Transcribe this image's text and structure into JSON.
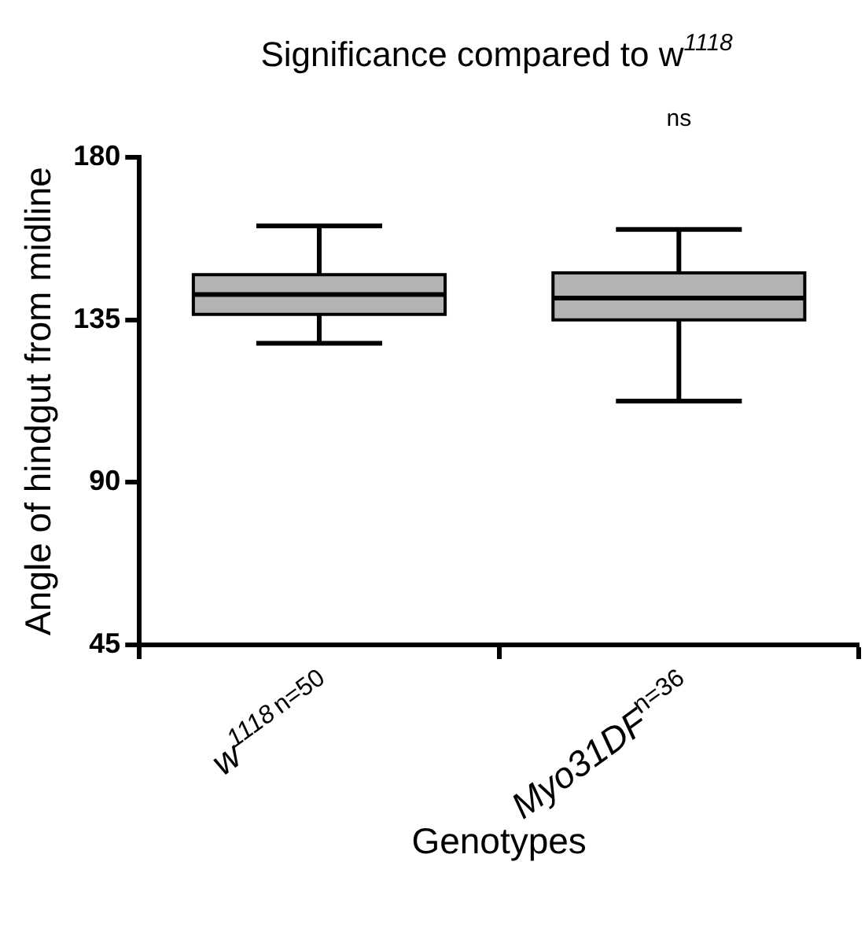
{
  "chart_data": {
    "type": "box",
    "title": "Significance compared to w$^{1118}$",
    "xlabel": "Genotypes",
    "ylabel": "Angle of hindgut from midline",
    "categories": [
      "w$^{1118}$$^{n=50}$",
      "Myo31DF$^{n=36}$"
    ],
    "color": "#b3b3b3",
    "boxes": [
      {
        "low": 128.5,
        "q1": 136.5,
        "median": 142,
        "q3": 147.5,
        "high": 161
      },
      {
        "low": 112.5,
        "q1": 135,
        "median": 141,
        "q3": 148,
        "high": 160
      }
    ],
    "ylim": [
      45,
      180
    ],
    "yticks": [
      45,
      90,
      135,
      180
    ],
    "annotations": [
      "ns"
    ]
  }
}
